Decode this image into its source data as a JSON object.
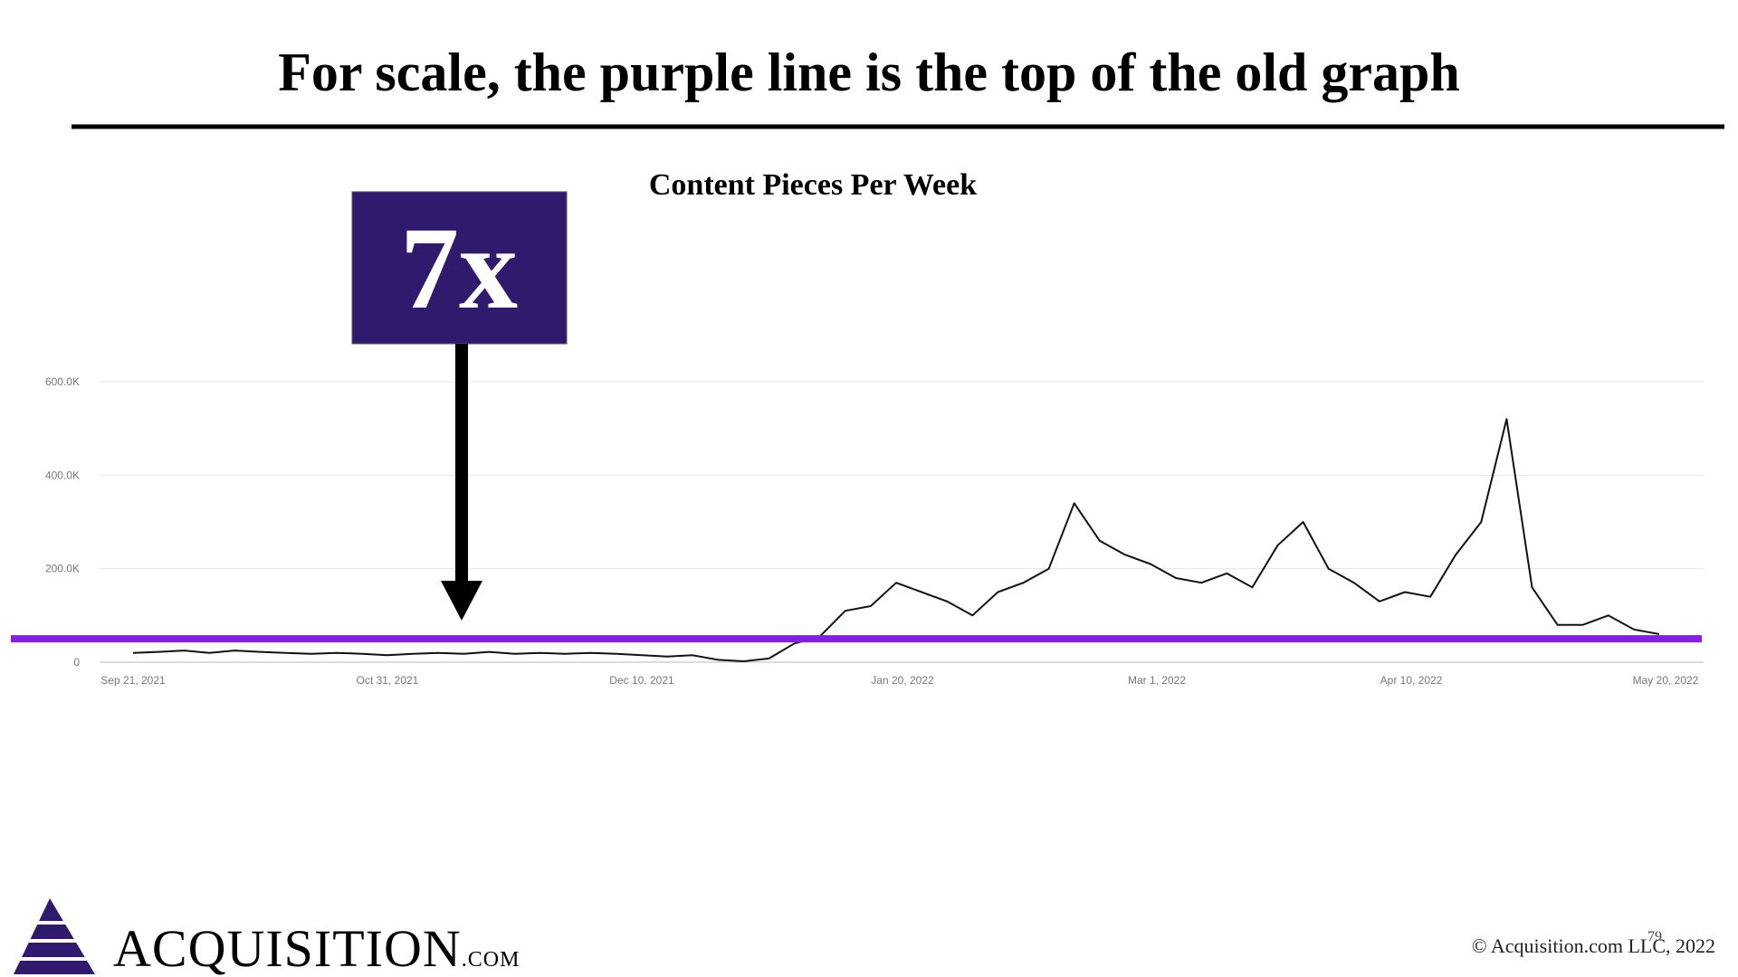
{
  "title": "For scale, the purple line is the top of the old graph",
  "chart_data": {
    "type": "line",
    "title": "Content Pieces Per Week",
    "x": [
      "Sep 21, 2021",
      "Sep 25, 2021",
      "Sep 29, 2021",
      "Oct 3, 2021",
      "Oct 7, 2021",
      "Oct 11, 2021",
      "Oct 15, 2021",
      "Oct 19, 2021",
      "Oct 23, 2021",
      "Oct 27, 2021",
      "Oct 31, 2021",
      "Nov 4, 2021",
      "Nov 8, 2021",
      "Nov 12, 2021",
      "Nov 16, 2021",
      "Nov 20, 2021",
      "Nov 24, 2021",
      "Nov 28, 2021",
      "Dec 2, 2021",
      "Dec 6, 2021",
      "Dec 10, 2021",
      "Dec 14, 2021",
      "Dec 18, 2021",
      "Dec 22, 2021",
      "Dec 26, 2021",
      "Dec 30, 2021",
      "Jan 3, 2022",
      "Jan 7, 2022",
      "Jan 11, 2022",
      "Jan 15, 2022",
      "Jan 19, 2022",
      "Jan 23, 2022",
      "Jan 27, 2022",
      "Jan 31, 2022",
      "Feb 4, 2022",
      "Feb 8, 2022",
      "Feb 12, 2022",
      "Feb 16, 2022",
      "Feb 20, 2022",
      "Feb 24, 2022",
      "Feb 28, 2022",
      "Mar 4, 2022",
      "Mar 8, 2022",
      "Mar 12, 2022",
      "Mar 16, 2022",
      "Mar 20, 2022",
      "Mar 24, 2022",
      "Mar 28, 2022",
      "Apr 1, 2022",
      "Apr 5, 2022",
      "Apr 9, 2022",
      "Apr 13, 2022",
      "Apr 17, 2022",
      "Apr 21, 2022",
      "Apr 25, 2022",
      "Apr 29, 2022",
      "May 3, 2022",
      "May 7, 2022",
      "May 11, 2022",
      "May 15, 2022",
      "May 19, 2022"
    ],
    "values": [
      20000,
      22000,
      25000,
      20000,
      25000,
      22000,
      20000,
      18000,
      20000,
      18000,
      15000,
      18000,
      20000,
      18000,
      22000,
      18000,
      20000,
      18000,
      20000,
      18000,
      15000,
      12000,
      15000,
      5000,
      2000,
      8000,
      40000,
      55000,
      110000,
      120000,
      170000,
      150000,
      130000,
      100000,
      150000,
      170000,
      200000,
      340000,
      260000,
      230000,
      210000,
      180000,
      170000,
      190000,
      160000,
      250000,
      300000,
      200000,
      170000,
      130000,
      150000,
      140000,
      230000,
      300000,
      520000,
      160000,
      80000,
      80000,
      100000,
      70000,
      60000
    ],
    "color": "#111111",
    "xlim": [
      "Sep 21, 2021",
      "May 20, 2022"
    ],
    "xticks": [
      "Sep 21, 2021",
      "Oct 31, 2021",
      "Dec 10, 2021",
      "Jan 20, 2022",
      "Mar 1, 2022",
      "Apr 10, 2022",
      "May 20, 2022"
    ],
    "ylim": [
      0,
      600000
    ],
    "yticks": [
      0,
      {
        "value": 200000,
        "label": "200.0K"
      },
      {
        "value": 400000,
        "label": "400.0K"
      },
      {
        "value": 600000,
        "label": "600.0K"
      }
    ],
    "grid": true,
    "reference_line": {
      "value": 50000,
      "color": "#8a1be0"
    },
    "annotation": "7x"
  },
  "footer": {
    "logo": "ACQUISITION",
    "logo_suffix": ".COM",
    "copyright": "© Acquisition.com LLC, 2022",
    "page": "79"
  }
}
